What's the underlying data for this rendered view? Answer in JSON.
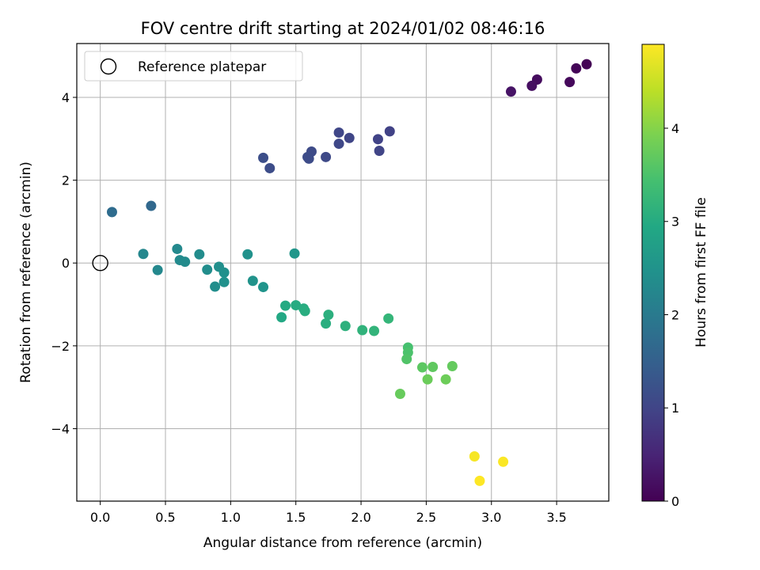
{
  "chart_data": {
    "type": "scatter",
    "title": "FOV centre drift starting at 2024/01/02 08:46:16",
    "xlabel": "Angular distance from reference (arcmin)",
    "ylabel": "Rotation from reference (arcmin)",
    "xlim": [
      -0.18,
      3.9
    ],
    "ylim": [
      -5.75,
      5.3
    ],
    "xticks": [
      0.0,
      0.5,
      1.0,
      1.5,
      2.0,
      2.5,
      3.0,
      3.5
    ],
    "xtick_labels": [
      "0.0",
      "0.5",
      "1.0",
      "1.5",
      "2.0",
      "2.5",
      "3.0",
      "3.5"
    ],
    "yticks": [
      -4,
      -2,
      0,
      2,
      4
    ],
    "ytick_labels": [
      "−4",
      "−2",
      "0",
      "2",
      "4"
    ],
    "grid": true,
    "legend": {
      "position": "top-left",
      "entries": [
        "Reference platepar"
      ]
    },
    "reference_point": {
      "x": 0.0,
      "y": 0.0
    },
    "colorbar": {
      "label": "Hours from first FF file",
      "range": [
        0,
        4.9
      ],
      "ticks": [
        0,
        1,
        2,
        3,
        4
      ],
      "tick_labels": [
        "0",
        "1",
        "2",
        "3",
        "4"
      ],
      "colormap": "viridis"
    },
    "points": [
      {
        "x": 3.73,
        "y": 4.8,
        "c": 0.02
      },
      {
        "x": 3.65,
        "y": 4.7,
        "c": 0.05
      },
      {
        "x": 3.6,
        "y": 4.37,
        "c": 0.1
      },
      {
        "x": 3.35,
        "y": 4.43,
        "c": 0.15
      },
      {
        "x": 3.31,
        "y": 4.28,
        "c": 0.2
      },
      {
        "x": 3.15,
        "y": 4.14,
        "c": 0.25
      },
      {
        "x": 2.22,
        "y": 3.18,
        "c": 0.95
      },
      {
        "x": 2.14,
        "y": 2.71,
        "c": 1.0
      },
      {
        "x": 2.13,
        "y": 2.99,
        "c": 0.97
      },
      {
        "x": 1.91,
        "y": 3.02,
        "c": 1.02
      },
      {
        "x": 1.83,
        "y": 3.15,
        "c": 1.04
      },
      {
        "x": 1.83,
        "y": 2.88,
        "c": 1.06
      },
      {
        "x": 1.73,
        "y": 2.56,
        "c": 1.08
      },
      {
        "x": 1.62,
        "y": 2.69,
        "c": 1.1
      },
      {
        "x": 1.6,
        "y": 2.52,
        "c": 1.12
      },
      {
        "x": 1.59,
        "y": 2.56,
        "c": 1.13
      },
      {
        "x": 1.3,
        "y": 2.29,
        "c": 1.15
      },
      {
        "x": 1.25,
        "y": 2.54,
        "c": 1.17
      },
      {
        "x": 0.39,
        "y": 1.38,
        "c": 1.65
      },
      {
        "x": 0.09,
        "y": 1.23,
        "c": 1.72
      },
      {
        "x": 0.33,
        "y": 0.22,
        "c": 2.25
      },
      {
        "x": 0.44,
        "y": -0.17,
        "c": 2.28
      },
      {
        "x": 0.59,
        "y": 0.34,
        "c": 2.3
      },
      {
        "x": 0.61,
        "y": 0.07,
        "c": 2.32
      },
      {
        "x": 0.65,
        "y": 0.03,
        "c": 2.34
      },
      {
        "x": 0.76,
        "y": 0.21,
        "c": 2.36
      },
      {
        "x": 0.82,
        "y": -0.16,
        "c": 2.38
      },
      {
        "x": 0.88,
        "y": -0.57,
        "c": 2.4
      },
      {
        "x": 0.91,
        "y": -0.09,
        "c": 2.42
      },
      {
        "x": 0.95,
        "y": -0.23,
        "c": 2.44
      },
      {
        "x": 0.95,
        "y": -0.46,
        "c": 2.46
      },
      {
        "x": 1.13,
        "y": 0.21,
        "c": 2.48
      },
      {
        "x": 1.17,
        "y": -0.43,
        "c": 2.5
      },
      {
        "x": 1.25,
        "y": -0.58,
        "c": 2.52
      },
      {
        "x": 1.49,
        "y": 0.23,
        "c": 2.55
      },
      {
        "x": 1.39,
        "y": -1.31,
        "c": 2.95
      },
      {
        "x": 1.42,
        "y": -1.03,
        "c": 2.98
      },
      {
        "x": 1.5,
        "y": -1.02,
        "c": 3.0
      },
      {
        "x": 1.56,
        "y": -1.1,
        "c": 3.02
      },
      {
        "x": 1.57,
        "y": -1.16,
        "c": 3.04
      },
      {
        "x": 1.73,
        "y": -1.46,
        "c": 3.06
      },
      {
        "x": 1.75,
        "y": -1.25,
        "c": 3.08
      },
      {
        "x": 1.88,
        "y": -1.52,
        "c": 3.12
      },
      {
        "x": 2.01,
        "y": -1.62,
        "c": 3.15
      },
      {
        "x": 2.1,
        "y": -1.64,
        "c": 3.18
      },
      {
        "x": 2.21,
        "y": -1.34,
        "c": 3.22
      },
      {
        "x": 2.36,
        "y": -2.04,
        "c": 3.45
      },
      {
        "x": 2.36,
        "y": -2.16,
        "c": 3.5
      },
      {
        "x": 2.35,
        "y": -2.32,
        "c": 3.55
      },
      {
        "x": 2.47,
        "y": -2.52,
        "c": 3.65
      },
      {
        "x": 2.55,
        "y": -2.51,
        "c": 3.68
      },
      {
        "x": 2.7,
        "y": -2.49,
        "c": 3.72
      },
      {
        "x": 2.3,
        "y": -3.16,
        "c": 3.75
      },
      {
        "x": 2.51,
        "y": -2.81,
        "c": 3.78
      },
      {
        "x": 2.65,
        "y": -2.81,
        "c": 3.8
      },
      {
        "x": 2.87,
        "y": -4.67,
        "c": 4.85
      },
      {
        "x": 3.09,
        "y": -4.8,
        "c": 4.88
      },
      {
        "x": 2.91,
        "y": -5.26,
        "c": 4.9
      }
    ]
  }
}
